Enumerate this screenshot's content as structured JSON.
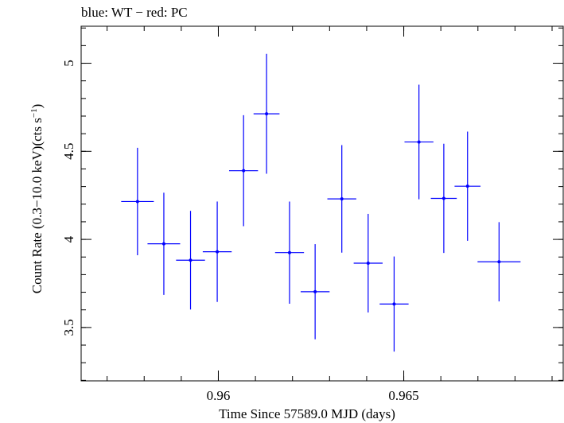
{
  "chart_data": {
    "type": "scatter",
    "title": "blue: WT − red: PC",
    "xlabel": "Time Since 57589.0 MJD (days)",
    "ylabel_main": "Count Rate (0.3−10.0 keV)(cts s",
    "ylabel_sup": "−1",
    "ylabel_close": ")",
    "xlim": [
      0.9563,
      0.9693
    ],
    "ylim": [
      3.197,
      5.21
    ],
    "x_ticks": [
      {
        "value": 0.96,
        "label": "0.96"
      },
      {
        "value": 0.965,
        "label": "0.965"
      }
    ],
    "y_ticks": [
      {
        "value": 3.5,
        "label": "3.5"
      },
      {
        "value": 4,
        "label": "4"
      },
      {
        "value": 4.5,
        "label": "4.5"
      },
      {
        "value": 5,
        "label": "5"
      }
    ],
    "grid": false,
    "series": [
      {
        "color": "#0000ff",
        "points": [
          {
            "x": 0.95782,
            "y": 4.215,
            "xerr": 0.00044,
            "yerr": 0.305
          },
          {
            "x": 0.95853,
            "y": 3.975,
            "xerr": 0.00044,
            "yerr": 0.29
          },
          {
            "x": 0.95925,
            "y": 3.882,
            "xerr": 0.00039,
            "yerr": 0.28
          },
          {
            "x": 0.95997,
            "y": 3.93,
            "xerr": 0.00039,
            "yerr": 0.285
          },
          {
            "x": 0.96068,
            "y": 4.39,
            "xerr": 0.00039,
            "yerr": 0.315
          },
          {
            "x": 0.9613,
            "y": 4.713,
            "xerr": 0.00035,
            "yerr": 0.34
          },
          {
            "x": 0.96192,
            "y": 3.925,
            "xerr": 0.00039,
            "yerr": 0.29
          },
          {
            "x": 0.96261,
            "y": 3.703,
            "xerr": 0.00039,
            "yerr": 0.27
          },
          {
            "x": 0.96333,
            "y": 4.23,
            "xerr": 0.00039,
            "yerr": 0.305
          },
          {
            "x": 0.96404,
            "y": 3.865,
            "xerr": 0.00039,
            "yerr": 0.28
          },
          {
            "x": 0.96474,
            "y": 3.633,
            "xerr": 0.00039,
            "yerr": 0.27
          },
          {
            "x": 0.96541,
            "y": 4.553,
            "xerr": 0.00039,
            "yerr": 0.325
          },
          {
            "x": 0.96608,
            "y": 4.233,
            "xerr": 0.00035,
            "yerr": 0.31
          },
          {
            "x": 0.96672,
            "y": 4.302,
            "xerr": 0.00035,
            "yerr": 0.31
          },
          {
            "x": 0.96757,
            "y": 3.873,
            "xerr": 0.00058,
            "yerr": 0.225
          }
        ]
      }
    ]
  }
}
